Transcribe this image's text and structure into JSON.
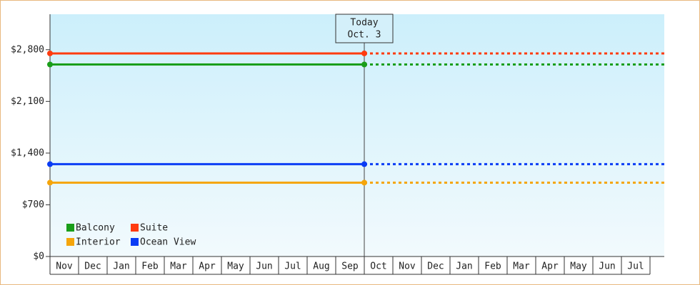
{
  "chart_data": {
    "type": "line",
    "annotation": [
      "Today",
      "Oct. 3"
    ],
    "categories": [
      "Nov",
      "Dec",
      "Jan",
      "Feb",
      "Mar",
      "Apr",
      "May",
      "Jun",
      "Jul",
      "Aug",
      "Sep",
      "Oct",
      "Nov",
      "Dec",
      "Jan",
      "Feb",
      "Mar",
      "Apr",
      "May",
      "Jun",
      "Jul"
    ],
    "series": [
      {
        "name": "Balcony",
        "color": "#1a9e1a",
        "values": [
          2600,
          2600,
          2600,
          2600,
          2600,
          2600,
          2600,
          2600,
          2600,
          2600,
          2600,
          2600,
          null,
          null,
          null,
          null,
          null,
          null,
          null,
          null,
          null
        ],
        "projected_values": [
          null,
          null,
          null,
          null,
          null,
          null,
          null,
          null,
          null,
          null,
          null,
          2600,
          2600,
          2600,
          2600,
          2600,
          2600,
          2600,
          2600,
          2600,
          2600
        ]
      },
      {
        "name": "Suite",
        "color": "#ff3b0f",
        "values": [
          2750,
          2750,
          2750,
          2750,
          2750,
          2750,
          2750,
          2750,
          2750,
          2750,
          2750,
          2750,
          null,
          null,
          null,
          null,
          null,
          null,
          null,
          null,
          null
        ],
        "projected_values": [
          null,
          null,
          null,
          null,
          null,
          null,
          null,
          null,
          null,
          null,
          null,
          2750,
          2750,
          2750,
          2750,
          2750,
          2750,
          2750,
          2750,
          2750,
          2750
        ]
      },
      {
        "name": "Interior",
        "color": "#f5a50a",
        "values": [
          1000,
          1000,
          1000,
          1000,
          1000,
          1000,
          1000,
          1000,
          1000,
          1000,
          1000,
          1000,
          null,
          null,
          null,
          null,
          null,
          null,
          null,
          null,
          null
        ],
        "projected_values": [
          null,
          null,
          null,
          null,
          null,
          null,
          null,
          null,
          null,
          null,
          null,
          1000,
          1000,
          1000,
          1000,
          1000,
          1000,
          1000,
          1000,
          1000,
          1000
        ]
      },
      {
        "name": "Ocean View",
        "color": "#0a3cf5",
        "values": [
          1250,
          1250,
          1250,
          1250,
          1250,
          1250,
          1250,
          1250,
          1250,
          1250,
          1250,
          1250,
          null,
          null,
          null,
          null,
          null,
          null,
          null,
          null,
          null
        ],
        "projected_values": [
          null,
          null,
          null,
          null,
          null,
          null,
          null,
          null,
          null,
          null,
          null,
          1250,
          1250,
          1250,
          1250,
          1250,
          1250,
          1250,
          1250,
          1250,
          1250
        ]
      }
    ],
    "ylim": [
      0,
      3280
    ],
    "yticks": [
      {
        "value": 0,
        "label": "$0"
      },
      {
        "value": 700,
        "label": "$700"
      },
      {
        "value": 1400,
        "label": "$1,400"
      },
      {
        "value": 2100,
        "label": "$2,100"
      },
      {
        "value": 2800,
        "label": "$2,800"
      }
    ],
    "legend": "lower left"
  }
}
